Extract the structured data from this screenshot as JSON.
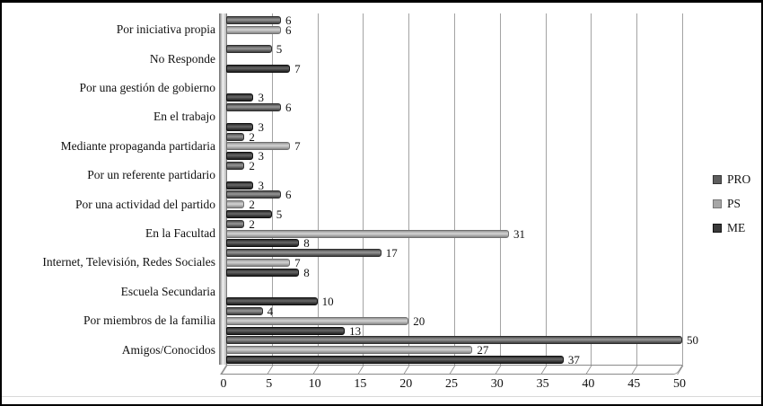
{
  "chart_data": {
    "type": "bar",
    "orientation": "horizontal",
    "title": "",
    "xlabel": "",
    "ylabel": "",
    "xlim": [
      0,
      50
    ],
    "x_ticks": [
      0,
      5,
      10,
      15,
      20,
      25,
      30,
      35,
      40,
      45,
      50
    ],
    "grid": "vertical",
    "legend_position": "right",
    "categories": [
      "Por iniciativa propia",
      "No Responde",
      "Por una gestión de gobierno",
      "En el trabajo",
      "Mediante propaganda partidaria",
      "Por un referente partidario",
      "Por una actividad del partido",
      "En la Facultad",
      "Internet, Televisión, Redes Sociales",
      "Escuela Secundaria",
      "Por miembros de la familia",
      "Amigos/Conocidos"
    ],
    "series": [
      {
        "name": "PRO",
        "color": "#5e5e5e",
        "values": [
          6,
          5,
          null,
          6,
          2,
          2,
          6,
          2,
          17,
          null,
          4,
          50
        ]
      },
      {
        "name": "PS",
        "color": "#a6a6a6",
        "values": [
          6,
          null,
          null,
          null,
          7,
          null,
          2,
          31,
          7,
          null,
          20,
          27
        ]
      },
      {
        "name": "ME",
        "color": "#3a3a3a",
        "values": [
          null,
          7,
          3,
          3,
          3,
          3,
          5,
          8,
          8,
          10,
          13,
          37
        ]
      }
    ],
    "colors": {
      "grid": "#a3a3a3",
      "frame": "#000000",
      "background": "#ffffff"
    }
  }
}
